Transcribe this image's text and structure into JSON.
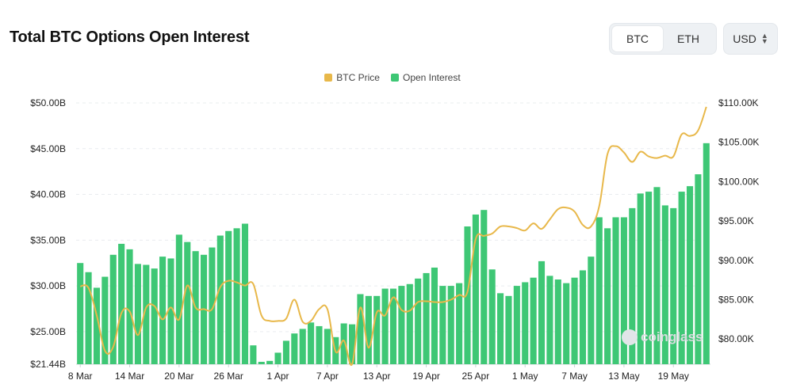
{
  "header": {
    "title": "Total BTC Options Open Interest"
  },
  "asset_toggle": {
    "options": [
      "BTC",
      "ETH"
    ],
    "selected": "BTC"
  },
  "currency_select": {
    "value": "USD"
  },
  "watermark": "coinglass",
  "colors": {
    "open_interest": "#3ec775",
    "btc_price": "#e8b84a"
  },
  "chart_data": {
    "type": "bar+line",
    "x_tick_labels": [
      "8 Mar",
      "14 Mar",
      "20 Mar",
      "26 Mar",
      "1 Apr",
      "7 Apr",
      "13 Apr",
      "19 Apr",
      "25 Apr",
      "1 May",
      "7 May",
      "13 May",
      "19 May"
    ],
    "y_left": {
      "ticks": [
        "$21.44B",
        "$25.00B",
        "$30.00B",
        "$35.00B",
        "$40.00B",
        "$45.00B",
        "$50.00B"
      ],
      "range": [
        21.44,
        50
      ]
    },
    "y_right": {
      "ticks": [
        "$80.00K",
        "$85.00K",
        "$90.00K",
        "$95.00K",
        "$100.00K",
        "$105.00K",
        "$110.00K"
      ],
      "range": [
        76.8,
        110
      ]
    },
    "legend": [
      {
        "name": "BTC Price",
        "color": "#e8b84a"
      },
      {
        "name": "Open Interest",
        "color": "#3ec775"
      }
    ],
    "grid": "horizontal dashed",
    "series": [
      {
        "name": "Open Interest",
        "axis": "left",
        "kind": "bar",
        "values": [
          32.5,
          31.5,
          29.8,
          31.0,
          33.4,
          34.6,
          34.0,
          32.4,
          32.3,
          31.9,
          33.2,
          33.0,
          35.6,
          34.8,
          33.8,
          33.4,
          34.2,
          35.5,
          36.0,
          36.3,
          36.8,
          23.5,
          21.7,
          21.8,
          22.7,
          24.0,
          24.8,
          25.3,
          26.0,
          25.6,
          25.3,
          24.4,
          25.9,
          25.8,
          29.1,
          28.9,
          28.9,
          29.7,
          29.7,
          30.0,
          30.2,
          30.8,
          31.4,
          32.0,
          30.0,
          30.0,
          30.3,
          36.5,
          37.8,
          38.3,
          31.8,
          29.2,
          28.9,
          30.0,
          30.4,
          30.9,
          32.7,
          31.1,
          30.7,
          30.3,
          30.9,
          31.7,
          33.2,
          37.5,
          36.3,
          37.5,
          37.5,
          38.5,
          40.1,
          40.3,
          40.8,
          38.8,
          38.5,
          40.3,
          40.9,
          42.2,
          45.6
        ]
      },
      {
        "name": "BTC Price",
        "axis": "right",
        "kind": "line",
        "values": [
          86.7,
          86.5,
          83.0,
          78.5,
          79.0,
          83.3,
          83.5,
          80.5,
          84.0,
          84.2,
          82.5,
          84.0,
          82.5,
          86.8,
          84.0,
          83.8,
          83.8,
          86.6,
          87.4,
          87.2,
          86.8,
          87.0,
          83.0,
          82.3,
          82.3,
          82.6,
          85.0,
          82.2,
          82.3,
          83.8,
          83.8,
          78.4,
          79.8,
          76.8,
          84.0,
          78.9,
          83.4,
          83.0,
          85.3,
          83.7,
          83.6,
          84.7,
          84.8,
          84.7,
          84.7,
          85.0,
          85.6,
          86.0,
          92.7,
          93.1,
          93.4,
          94.3,
          94.3,
          94.1,
          93.8,
          94.7,
          94.0,
          95.2,
          96.5,
          96.7,
          96.2,
          94.5,
          94.3,
          96.9,
          103.5,
          104.5,
          103.7,
          102.5,
          103.8,
          103.2,
          103.0,
          103.3,
          103.2,
          106.0,
          105.8,
          106.5,
          109.5
        ]
      }
    ]
  }
}
